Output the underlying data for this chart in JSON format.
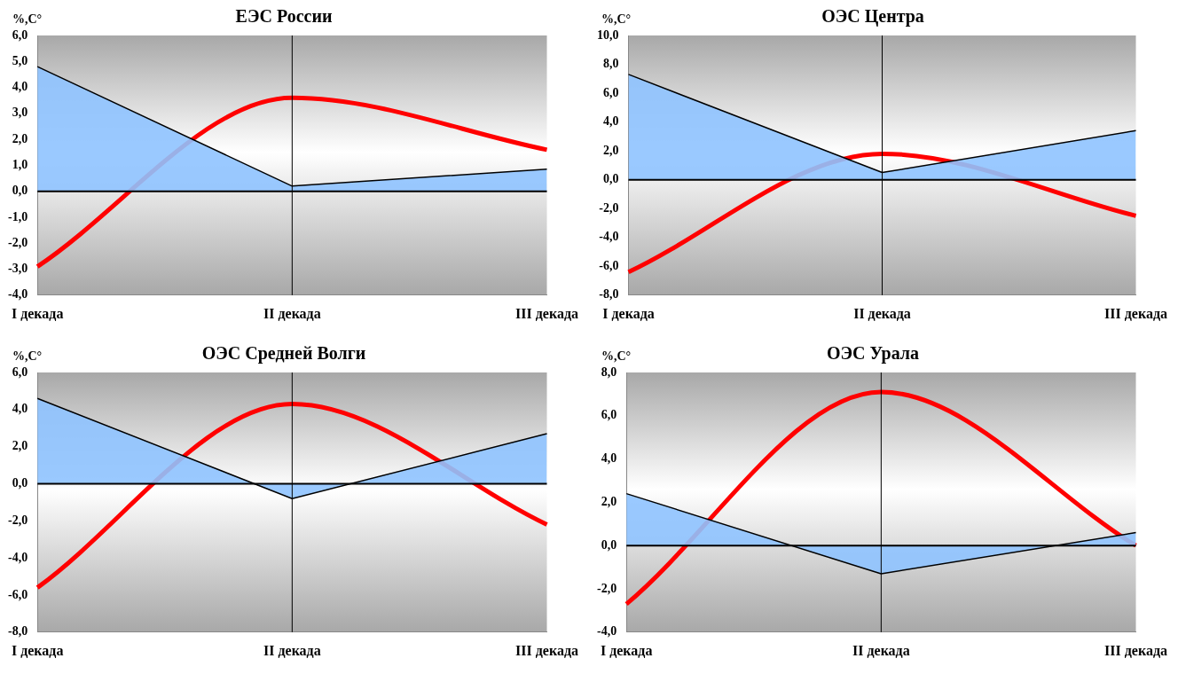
{
  "chart_data": [
    {
      "type": "line",
      "title": "ЕЭС России",
      "ylabel": "%,C°",
      "categories": [
        "I декада",
        "II декада",
        "III декада"
      ],
      "ylim": [
        -4,
        6
      ],
      "yticks": [
        {
          "value": -4,
          "label": "-4,0"
        },
        {
          "value": -3,
          "label": "-3,0"
        },
        {
          "value": -2,
          "label": "-2,0"
        },
        {
          "value": -1,
          "label": "-1,0"
        },
        {
          "value": 0,
          "label": "0,0"
        },
        {
          "value": 1,
          "label": "1,0"
        },
        {
          "value": 2,
          "label": "2,0"
        },
        {
          "value": 3,
          "label": "3,0"
        },
        {
          "value": 4,
          "label": "4,0"
        },
        {
          "value": 5,
          "label": "5,0"
        },
        {
          "value": 6,
          "label": "6,0"
        }
      ],
      "grid": false,
      "legend": false,
      "marker": "none",
      "ref_lines": [
        {
          "axis": "y",
          "value": 0,
          "color": "#000000"
        },
        {
          "axis": "x",
          "value": "II декада",
          "color": "#000000"
        }
      ],
      "series": [
        {
          "type": "area",
          "color": "#8fc3ff",
          "values": [
            4.8,
            0.2,
            0.85
          ]
        },
        {
          "color": "#ff0000",
          "values": [
            -2.9,
            3.6,
            1.6
          ]
        }
      ]
    },
    {
      "type": "line",
      "title": "ОЭС Центра",
      "ylabel": "%,C°",
      "categories": [
        "I декада",
        "II декада",
        "III декада"
      ],
      "ylim": [
        -8,
        10
      ],
      "yticks": [
        {
          "value": -8,
          "label": "-8,0"
        },
        {
          "value": -6,
          "label": "-6,0"
        },
        {
          "value": -4,
          "label": "-4,0"
        },
        {
          "value": -2,
          "label": "-2,0"
        },
        {
          "value": 0,
          "label": "0,0"
        },
        {
          "value": 2,
          "label": "2,0"
        },
        {
          "value": 4,
          "label": "4,0"
        },
        {
          "value": 6,
          "label": "6,0"
        },
        {
          "value": 8,
          "label": "8,0"
        },
        {
          "value": 10,
          "label": "10,0"
        }
      ],
      "grid": false,
      "legend": false,
      "marker": "none",
      "ref_lines": [
        {
          "axis": "y",
          "value": 0,
          "color": "#000000"
        },
        {
          "axis": "x",
          "value": "II декада",
          "color": "#000000"
        }
      ],
      "series": [
        {
          "type": "area",
          "color": "#8fc3ff",
          "values": [
            7.3,
            0.5,
            3.4
          ]
        },
        {
          "color": "#ff0000",
          "values": [
            -6.4,
            1.8,
            -2.5
          ]
        }
      ]
    },
    {
      "type": "line",
      "title": "ОЭС Средней Волги",
      "ylabel": "%,C°",
      "categories": [
        "I декада",
        "II декада",
        "III декада"
      ],
      "ylim": [
        -8,
        6
      ],
      "yticks": [
        {
          "value": -8,
          "label": "-8,0"
        },
        {
          "value": -6,
          "label": "-6,0"
        },
        {
          "value": -4,
          "label": "-4,0"
        },
        {
          "value": -2,
          "label": "-2,0"
        },
        {
          "value": 0,
          "label": "0,0"
        },
        {
          "value": 2,
          "label": "2,0"
        },
        {
          "value": 4,
          "label": "4,0"
        },
        {
          "value": 6,
          "label": "6,0"
        }
      ],
      "grid": false,
      "legend": false,
      "marker": "none",
      "ref_lines": [
        {
          "axis": "y",
          "value": 0,
          "color": "#000000"
        },
        {
          "axis": "x",
          "value": "II декада",
          "color": "#000000"
        }
      ],
      "series": [
        {
          "type": "area",
          "color": "#8fc3ff",
          "values": [
            4.6,
            -0.8,
            2.7
          ]
        },
        {
          "color": "#ff0000",
          "values": [
            -5.6,
            4.3,
            -2.2
          ]
        }
      ]
    },
    {
      "type": "line",
      "title": "ОЭС Урала",
      "ylabel": "%,C°",
      "categories": [
        "I декада",
        "II декада",
        "III декада"
      ],
      "ylim": [
        -4,
        8
      ],
      "yticks": [
        {
          "value": -4,
          "label": "-4,0"
        },
        {
          "value": -2,
          "label": "-2,0"
        },
        {
          "value": 0,
          "label": "0,0"
        },
        {
          "value": 2,
          "label": "2,0"
        },
        {
          "value": 4,
          "label": "4,0"
        },
        {
          "value": 6,
          "label": "6,0"
        },
        {
          "value": 8,
          "label": "8,0"
        }
      ],
      "grid": false,
      "legend": false,
      "marker": "none",
      "ref_lines": [
        {
          "axis": "y",
          "value": 0,
          "color": "#000000"
        },
        {
          "axis": "x",
          "value": "II декада",
          "color": "#000000"
        }
      ],
      "series": [
        {
          "type": "area",
          "color": "#8fc3ff",
          "values": [
            2.4,
            -1.3,
            0.6
          ]
        },
        {
          "color": "#ff0000",
          "values": [
            -2.7,
            7.1,
            0.0
          ]
        }
      ]
    }
  ]
}
